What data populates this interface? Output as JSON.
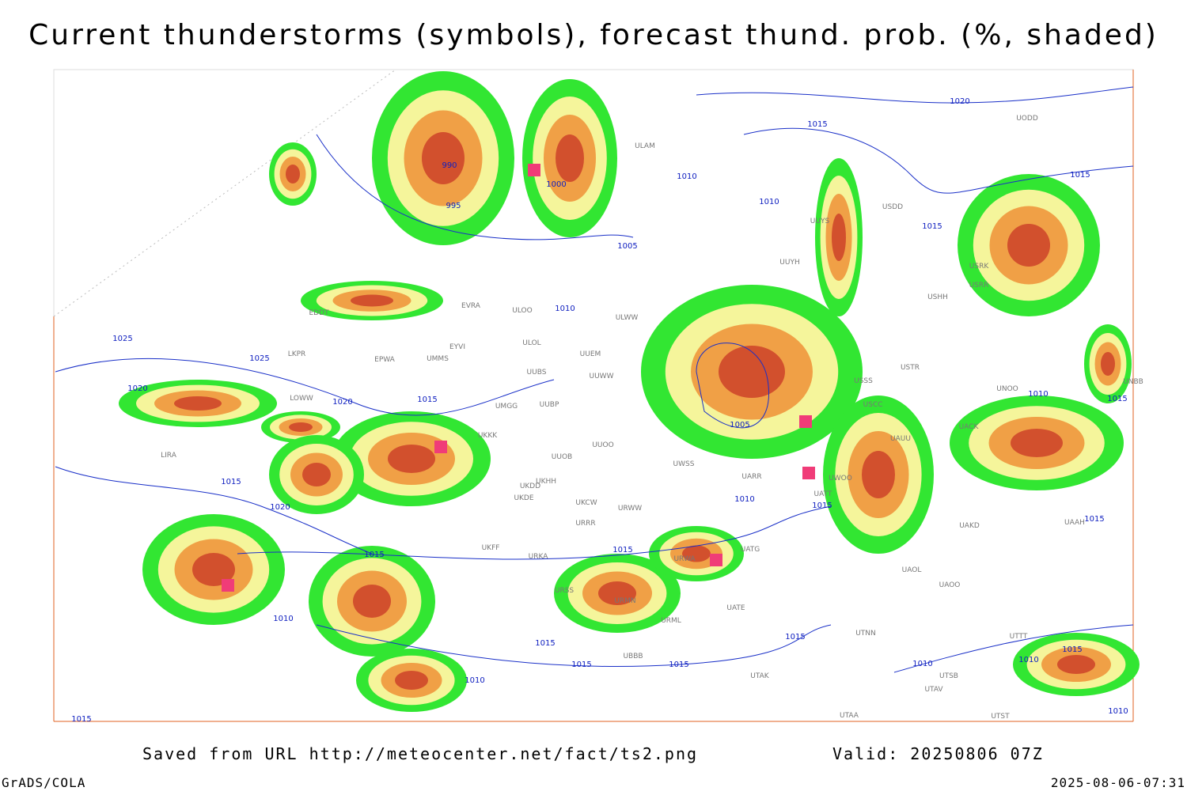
{
  "title": "Current thunderstorms (symbols), forecast thund. prob. (%, shaded)",
  "footer": {
    "source": "Saved from URL http://meteocenter.net/fact/ts2.png",
    "valid": "Valid: 20250806 07Z",
    "software": "GrADS/COLA",
    "timestamp": "2025-08-06-07:31"
  },
  "stations": [
    "EDDT",
    "EPWA",
    "LKPR",
    "LOWW",
    "LIRA",
    "EYVI",
    "UMMS",
    "EVRA",
    "ULOO",
    "ULOL",
    "UUEM",
    "UUWW",
    "UUBS",
    "UMGG",
    "UUBP",
    "UUOO",
    "UUOB",
    "UKKK",
    "UKHH",
    "UKDD",
    "UKDE",
    "UKCW",
    "URRR",
    "UKFF",
    "URKA",
    "URSS",
    "URWW",
    "URWA",
    "URMN",
    "URML",
    "UBBB",
    "UATE",
    "UATG",
    "UATT",
    "UWOO",
    "UARR",
    "UWSS",
    "USSS",
    "USCC",
    "UAUU",
    "USTR",
    "UNOO",
    "UACK",
    "UAKD",
    "UAOL",
    "UAOO",
    "UTNN",
    "UTAK",
    "UTAA",
    "UTSB",
    "UTAV",
    "USHH",
    "USRR",
    "USRK",
    "USDD",
    "UUYS",
    "UUYH",
    "ULWW",
    "UNBB",
    "UAAH",
    "UTTT",
    "UTST",
    "ULAM",
    "UODD"
  ],
  "isobars": [
    990,
    995,
    1000,
    1005,
    1010,
    1010,
    1010,
    1015,
    1015,
    1015,
    1020,
    1025,
    1025,
    1020,
    1020,
    1015,
    1005,
    1015,
    1010,
    1010,
    1015,
    1015,
    1020,
    1015,
    1015,
    1010,
    1015,
    1015,
    1015,
    1010,
    1015,
    1010,
    1015,
    1010,
    1015,
    1010,
    1015
  ]
}
